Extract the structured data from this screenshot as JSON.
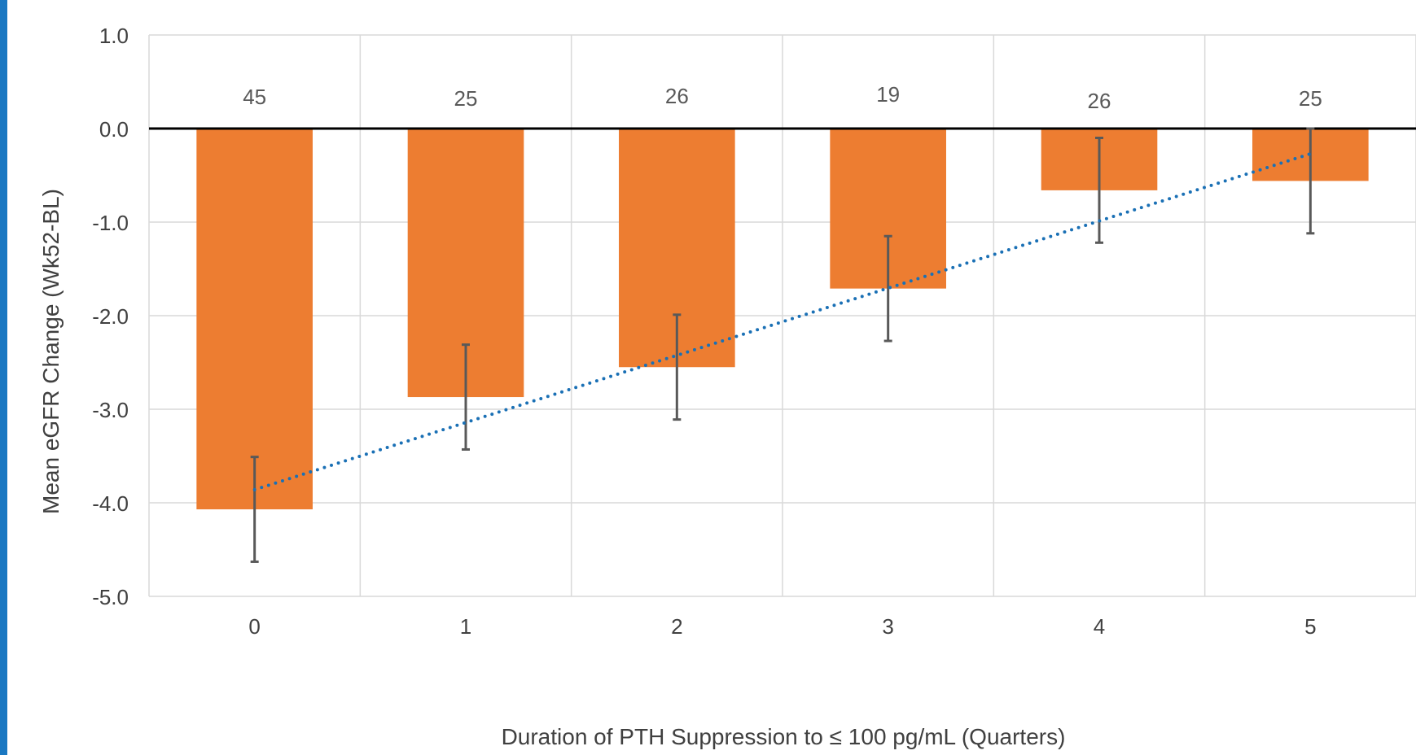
{
  "chart_data": {
    "type": "bar",
    "categories": [
      "0",
      "1",
      "2",
      "3",
      "4",
      "5"
    ],
    "values": [
      -4.07,
      -2.87,
      -2.55,
      -1.71,
      -0.66,
      -0.56
    ],
    "errors": [
      0.56,
      0.56,
      0.56,
      0.56,
      0.56,
      0.56
    ],
    "n_labels": [
      "45",
      "25",
      "26",
      "19",
      "26",
      "25"
    ],
    "trendline": {
      "style": "dotted",
      "from": -3.86,
      "to": -0.27
    },
    "xlabel": "Duration of PTH Suppression to ≤ 100 pg/mL (Quarters)",
    "ylabel": "Mean eGFR Change (Wk52-BL)",
    "ylim": [
      -5.0,
      1.0
    ],
    "yticks": [
      "1.0",
      "0.0",
      "-1.0",
      "-2.0",
      "-3.0",
      "-4.0",
      "-5.0"
    ],
    "grid": true,
    "colors": {
      "bar": "#ed7d31",
      "trendline": "#1a70b5",
      "error_bar": "#595959",
      "gridline": "#d9d9d9",
      "zero_line": "#000000",
      "accent_bar": "#1a78c2"
    }
  }
}
